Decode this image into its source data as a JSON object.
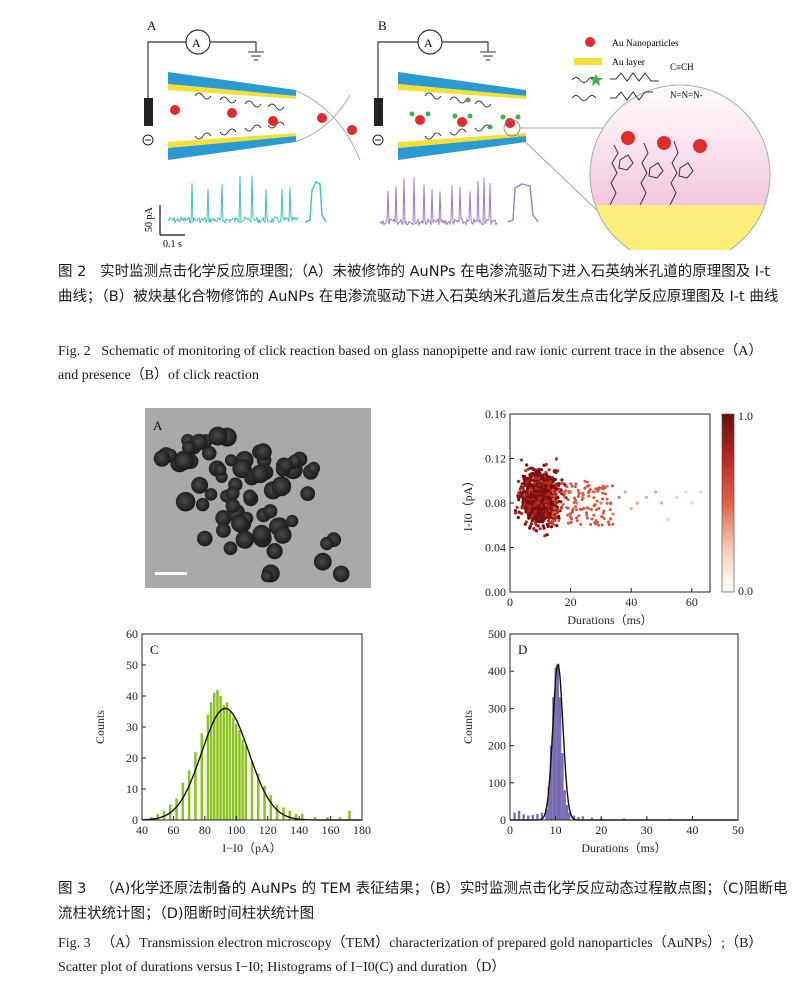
{
  "fig2": {
    "panel_a": "A",
    "panel_b": "B",
    "ammeter": "A",
    "legend": {
      "nanoparticles": "Au Nanoparticles",
      "au_layer": "Au layer",
      "alkyne_end": "C≡CH",
      "azide_end": "N=N=N-"
    },
    "scale_y": "50 pA",
    "scale_x": "0.1 s",
    "caption_cn_label": "图 2",
    "caption_cn": "实时监测点击化学反应原理图;（A）未被修饰的 AuNPs 在电渗流驱动下进入石英纳米孔道的原理图及 I-t 曲线；（B）被炔基化合物修饰的 AuNPs 在电渗流驱动下进入石英纳米孔道后发生点击化学反应原理图及 I-t 曲线",
    "caption_en_label": "Fig. 2",
    "caption_en": "Schematic of monitoring of click reaction based on glass nanopipette and raw ionic current trace in the absence（A）and presence（B）of click reaction"
  },
  "fig3": {
    "panel_a": "A",
    "panel_c": "C",
    "panel_d": "D",
    "caption_cn_label": "图 3",
    "caption_cn": "（A)化学还原法制备的 AuNPs 的 TEM 表征结果；（B）实时监测点击化学反应动态过程散点图；（C)阻断电流柱状统计图；（D)阻断时间柱状统计图",
    "caption_en_label": "Fig. 3",
    "caption_en": "（A）Transmission electron microscopy（TEM）characterization of prepared gold nanoparticles（AuNPs）;（B）Scatter plot of durations versus I−I0; Histograms of I−I0(C) and duration（D）"
  },
  "chart_data": [
    {
      "type": "scatter",
      "panel": "B",
      "xlabel": "Durations（ms）",
      "ylabel": "I-I0（pA）",
      "xlim": [
        0,
        66
      ],
      "ylim": [
        0,
        0.16
      ],
      "xticks": [
        "0",
        "20",
        "40",
        "60"
      ],
      "yticks": [
        "0.00",
        "0.04",
        "0.08",
        "0.12",
        "0.16"
      ],
      "colorbar": {
        "min": "0.0",
        "max": "1.0",
        "colors": [
          "#ffffff",
          "#f6c9b3",
          "#e0634a",
          "#b72a22",
          "#6d0d0d"
        ]
      },
      "point_cloud": {
        "x_center": 10,
        "y_center": 0.085,
        "x_spread": 3,
        "y_spread": 0.012,
        "count": 900
      },
      "tail_points": [
        [
          20,
          0.09
        ],
        [
          22,
          0.08
        ],
        [
          24,
          0.085
        ],
        [
          26,
          0.075
        ],
        [
          28,
          0.09
        ],
        [
          30,
          0.08
        ],
        [
          32,
          0.095
        ],
        [
          34,
          0.07
        ],
        [
          36,
          0.085
        ],
        [
          38,
          0.09
        ],
        [
          40,
          0.075
        ],
        [
          42,
          0.08
        ],
        [
          45,
          0.085
        ],
        [
          48,
          0.09
        ],
        [
          50,
          0.08
        ],
        [
          52,
          0.065
        ],
        [
          55,
          0.085
        ],
        [
          58,
          0.09
        ],
        [
          60,
          0.08
        ],
        [
          63,
          0.09
        ]
      ],
      "grid": false
    },
    {
      "type": "bar",
      "panel": "C",
      "xlabel": "I−I0（pA）",
      "ylabel": "Counts",
      "xlim": [
        40,
        180
      ],
      "ylim": [
        0,
        60
      ],
      "xticks": [
        "40",
        "60",
        "80",
        "100",
        "120",
        "140",
        "160",
        "180"
      ],
      "yticks": [
        "0",
        "10",
        "20",
        "30",
        "40",
        "50",
        "60"
      ],
      "bar_color": "#8cc31e",
      "fit": {
        "center": 93,
        "sigma": 15,
        "amplitude": 36
      },
      "bins_x": [
        46,
        50,
        54,
        58,
        62,
        66,
        70,
        74,
        78,
        82,
        84,
        86,
        88,
        90,
        92,
        94,
        96,
        98,
        100,
        102,
        104,
        106,
        110,
        114,
        118,
        122,
        126,
        130,
        134,
        138,
        142,
        150,
        158,
        166,
        172
      ],
      "bins_y": [
        1,
        2,
        3,
        5,
        7,
        12,
        16,
        22,
        28,
        34,
        38,
        41,
        42,
        40,
        37,
        38,
        35,
        33,
        31,
        29,
        26,
        24,
        19,
        15,
        11,
        8,
        5,
        4,
        3,
        2,
        2,
        1,
        1,
        1,
        3
      ],
      "grid": false
    },
    {
      "type": "bar",
      "panel": "D",
      "xlabel": "Durations（ms）",
      "ylabel": "Counts",
      "xlim": [
        0,
        50
      ],
      "ylim": [
        0,
        500
      ],
      "xticks": [
        "0",
        "10",
        "20",
        "30",
        "40",
        "50"
      ],
      "yticks": [
        "0",
        "100",
        "200",
        "300",
        "400",
        "500"
      ],
      "bar_color": "#7b6bb2",
      "fit": {
        "center": 10.5,
        "sigma": 1.1,
        "amplitude": 420
      },
      "bins_x": [
        1,
        2,
        3,
        4,
        5,
        6,
        7,
        8,
        8.5,
        9,
        9.5,
        10,
        10.5,
        11,
        11.5,
        12,
        12.5,
        13,
        14,
        15,
        16,
        18,
        20,
        25,
        30,
        35,
        40,
        45
      ],
      "bins_y": [
        20,
        25,
        15,
        12,
        14,
        16,
        20,
        30,
        90,
        200,
        330,
        410,
        420,
        330,
        180,
        80,
        40,
        20,
        12,
        8,
        10,
        6,
        5,
        4,
        3,
        3,
        2,
        2
      ],
      "grid": false
    }
  ]
}
